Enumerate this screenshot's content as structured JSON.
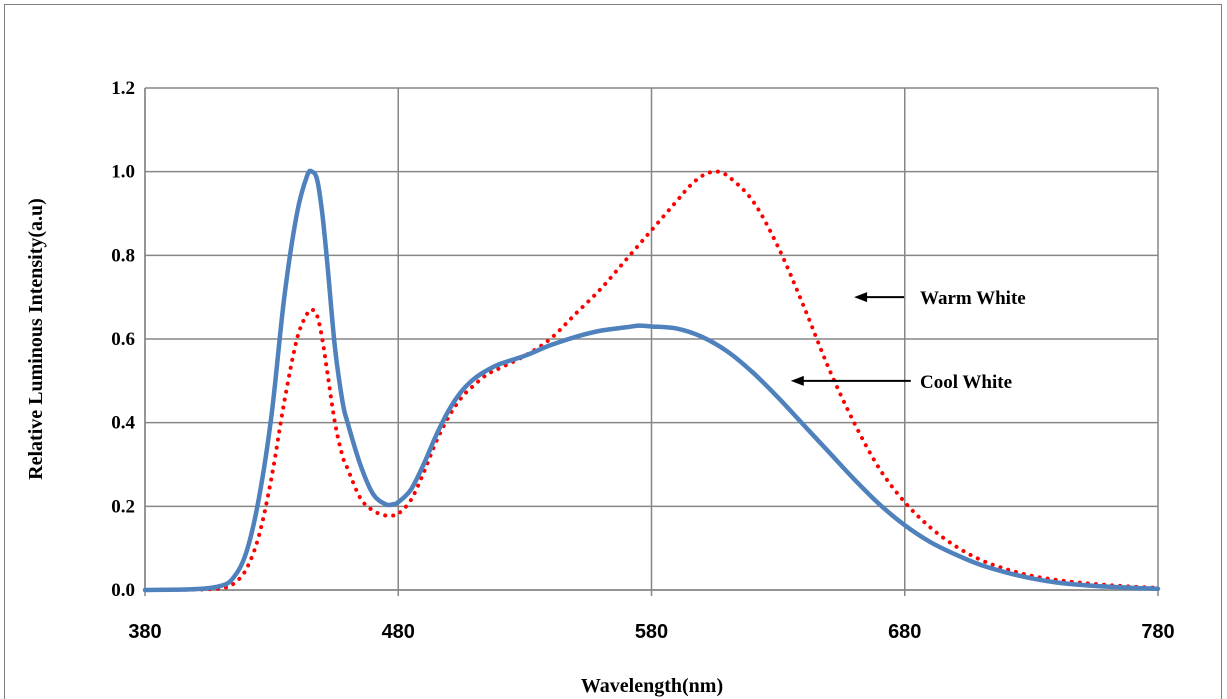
{
  "chart_data": {
    "type": "line",
    "xlabel": "Wavelength(nm)",
    "ylabel": "Relative Luminous Intensity(a.u)",
    "xlim": [
      380,
      780
    ],
    "ylim": [
      0,
      1.2
    ],
    "x_ticks": [
      "380",
      "480",
      "580",
      "680",
      "780"
    ],
    "y_ticks": [
      "0.0",
      "0.2",
      "0.4",
      "0.6",
      "0.8",
      "1.0",
      "1.2"
    ],
    "grid": true,
    "colors": {
      "cool": "#4f81bd",
      "warm": "#ff0000",
      "grid": "#868686"
    },
    "series": [
      {
        "name": "Cool White",
        "style": "solid",
        "x": [
          380,
          400,
          410,
          415,
          420,
          425,
          430,
          435,
          440,
          444,
          446,
          448,
          450,
          452,
          455,
          458,
          460,
          465,
          470,
          475,
          478,
          480,
          485,
          490,
          495,
          500,
          505,
          510,
          515,
          520,
          530,
          540,
          550,
          560,
          570,
          575,
          580,
          590,
          600,
          610,
          620,
          630,
          640,
          650,
          660,
          670,
          680,
          690,
          700,
          710,
          720,
          730,
          740,
          750,
          760,
          770,
          780
        ],
        "values": [
          0,
          0.002,
          0.01,
          0.03,
          0.09,
          0.22,
          0.42,
          0.7,
          0.9,
          0.99,
          1.0,
          0.98,
          0.9,
          0.78,
          0.58,
          0.45,
          0.4,
          0.3,
          0.23,
          0.205,
          0.205,
          0.21,
          0.24,
          0.3,
          0.37,
          0.43,
          0.475,
          0.505,
          0.525,
          0.54,
          0.56,
          0.585,
          0.605,
          0.62,
          0.628,
          0.632,
          0.63,
          0.625,
          0.605,
          0.57,
          0.52,
          0.46,
          0.395,
          0.33,
          0.265,
          0.205,
          0.155,
          0.115,
          0.085,
          0.06,
          0.042,
          0.028,
          0.018,
          0.012,
          0.008,
          0.005,
          0.003
        ]
      },
      {
        "name": "Warm White",
        "style": "dotted",
        "x": [
          380,
          400,
          410,
          415,
          420,
          425,
          430,
          435,
          440,
          444,
          446,
          448,
          450,
          452,
          455,
          458,
          460,
          465,
          470,
          475,
          478,
          480,
          485,
          490,
          495,
          500,
          505,
          510,
          515,
          520,
          530,
          540,
          550,
          560,
          570,
          580,
          590,
          595,
          600,
          605,
          610,
          620,
          630,
          640,
          650,
          660,
          670,
          680,
          690,
          700,
          710,
          720,
          730,
          740,
          750,
          760,
          770,
          780
        ],
        "values": [
          0,
          0.001,
          0.004,
          0.015,
          0.05,
          0.13,
          0.27,
          0.45,
          0.6,
          0.66,
          0.67,
          0.655,
          0.6,
          0.52,
          0.4,
          0.32,
          0.29,
          0.22,
          0.19,
          0.178,
          0.178,
          0.182,
          0.215,
          0.28,
          0.355,
          0.415,
          0.46,
          0.49,
          0.515,
          0.53,
          0.56,
          0.6,
          0.66,
          0.72,
          0.79,
          0.86,
          0.93,
          0.965,
          0.99,
          1.0,
          0.99,
          0.93,
          0.82,
          0.68,
          0.53,
          0.4,
          0.29,
          0.21,
          0.15,
          0.105,
          0.072,
          0.05,
          0.034,
          0.024,
          0.017,
          0.012,
          0.008,
          0.005
        ]
      }
    ],
    "annotations": [
      {
        "text": "Warm White",
        "target_x": 660,
        "y": 0.7
      },
      {
        "text": "Cool White",
        "target_x": 635,
        "y": 0.5
      }
    ]
  }
}
